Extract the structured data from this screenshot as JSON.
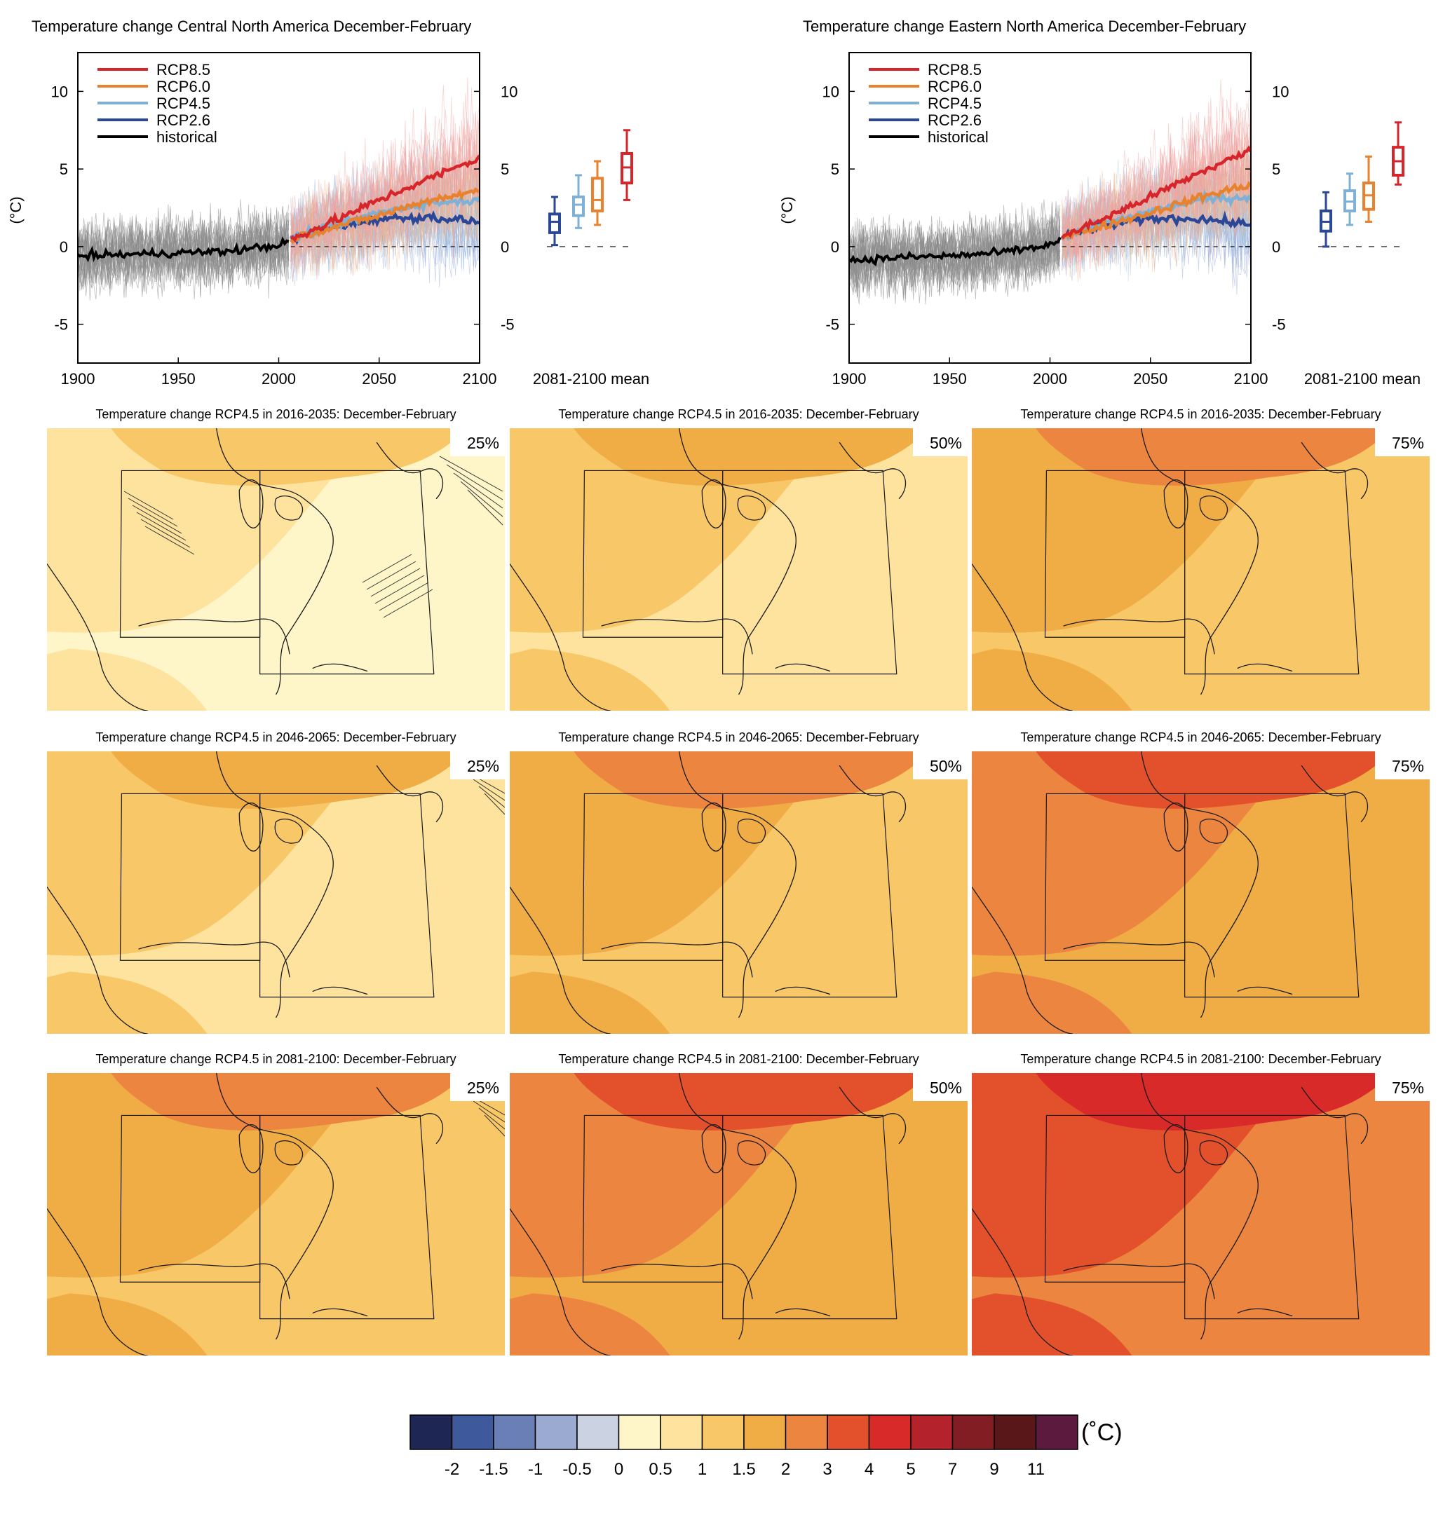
{
  "time_series": [
    {
      "title": "Temperature change Central North America December-February",
      "ylabel": "(°C)",
      "boxplot_label": "2081-2100 mean"
    },
    {
      "title": "Temperature change Eastern North America December-February",
      "ylabel": "(°C)",
      "boxplot_label": "2081-2100 mean"
    }
  ],
  "legend": [
    {
      "name": "RCP8.5",
      "color": "#d7262b"
    },
    {
      "name": "RCP6.0",
      "color": "#e8822e"
    },
    {
      "name": "RCP4.5",
      "color": "#7fb0d6"
    },
    {
      "name": "RCP2.6",
      "color": "#2b4797"
    },
    {
      "name": "historical",
      "color": "#000000"
    }
  ],
  "x_ticks": [
    "1900",
    "1950",
    "2000",
    "2050",
    "2100"
  ],
  "y_ticks": [
    "-5",
    "0",
    "5",
    "10"
  ],
  "maps": [
    {
      "title": "Temperature change RCP4.5 in 2016-2035: December-February",
      "pct": "25%",
      "level": 0
    },
    {
      "title": "Temperature change RCP4.5 in 2016-2035: December-February",
      "pct": "50%",
      "level": 1
    },
    {
      "title": "Temperature change RCP4.5 in 2016-2035: December-February",
      "pct": "75%",
      "level": 2
    },
    {
      "title": "Temperature change RCP4.5 in 2046-2065: December-February",
      "pct": "25%",
      "level": 1
    },
    {
      "title": "Temperature change RCP4.5 in 2046-2065: December-February",
      "pct": "50%",
      "level": 2
    },
    {
      "title": "Temperature change RCP4.5 in 2046-2065: December-February",
      "pct": "75%",
      "level": 3
    },
    {
      "title": "Temperature change RCP4.5 in 2081-2100: December-February",
      "pct": "25%",
      "level": 2
    },
    {
      "title": "Temperature change RCP4.5 in 2081-2100: December-February",
      "pct": "50%",
      "level": 3
    },
    {
      "title": "Temperature change RCP4.5 in 2081-2100: December-February",
      "pct": "75%",
      "level": 4
    }
  ],
  "colorbar": {
    "unit": "(˚C)",
    "colors": [
      "#1e2654",
      "#3f5a9c",
      "#6a7fb5",
      "#9aaad0",
      "#cbd3e3",
      "#fef5c8",
      "#fde39e",
      "#f8c768",
      "#f0ac45",
      "#ec8540",
      "#e3512c",
      "#d92a2a",
      "#b4232b",
      "#821d24",
      "#591719",
      "#5c1a3f"
    ],
    "labels": [
      "-2",
      "-1.5",
      "-1",
      "-0.5",
      "0",
      "0.5",
      "1",
      "1.5",
      "2",
      "3",
      "4",
      "5",
      "7",
      "9",
      "11"
    ]
  },
  "chart_data": [
    {
      "type": "line",
      "title": "Temperature change Central North America December-February",
      "ylabel": "(°C)",
      "xlim": [
        1900,
        2100
      ],
      "ylim": [
        -7.5,
        12.5
      ],
      "series": [
        {
          "name": "historical",
          "x": [
            1900,
            1925,
            1950,
            1975,
            2000,
            2005
          ],
          "y": [
            -0.6,
            -0.5,
            -0.4,
            -0.3,
            0.1,
            0.3
          ]
        },
        {
          "name": "RCP2.6",
          "x": [
            2006,
            2025,
            2050,
            2075,
            2100
          ],
          "y": [
            0.5,
            1.2,
            1.8,
            1.9,
            1.6
          ]
        },
        {
          "name": "RCP4.5",
          "x": [
            2006,
            2025,
            2050,
            2075,
            2100
          ],
          "y": [
            0.5,
            1.3,
            2.2,
            2.8,
            3.0
          ]
        },
        {
          "name": "RCP6.0",
          "x": [
            2006,
            2025,
            2050,
            2075,
            2100
          ],
          "y": [
            0.5,
            1.2,
            2.0,
            3.0,
            3.6
          ]
        },
        {
          "name": "RCP8.5",
          "x": [
            2006,
            2025,
            2050,
            2075,
            2100
          ],
          "y": [
            0.5,
            1.5,
            3.0,
            4.4,
            5.7
          ]
        }
      ],
      "boxplot_2081_2100": [
        {
          "name": "RCP2.6",
          "min": 0.1,
          "q1": 0.9,
          "median": 1.6,
          "q3": 2.1,
          "max": 3.2
        },
        {
          "name": "RCP4.5",
          "min": 1.2,
          "q1": 2.0,
          "median": 2.7,
          "q3": 3.2,
          "max": 4.6
        },
        {
          "name": "RCP6.0",
          "min": 1.4,
          "q1": 2.3,
          "median": 3.0,
          "q3": 4.4,
          "max": 5.5
        },
        {
          "name": "RCP8.5",
          "min": 3.0,
          "q1": 4.1,
          "median": 5.1,
          "q3": 6.0,
          "max": 7.5
        }
      ]
    },
    {
      "type": "line",
      "title": "Temperature change Eastern North America December-February",
      "ylabel": "(°C)",
      "xlim": [
        1900,
        2100
      ],
      "ylim": [
        -7.5,
        12.5
      ],
      "series": [
        {
          "name": "historical",
          "x": [
            1900,
            1925,
            1950,
            1975,
            2000,
            2005
          ],
          "y": [
            -0.9,
            -0.7,
            -0.6,
            -0.4,
            0.1,
            0.4
          ]
        },
        {
          "name": "RCP2.6",
          "x": [
            2006,
            2025,
            2050,
            2075,
            2100
          ],
          "y": [
            0.6,
            1.3,
            1.8,
            1.8,
            1.4
          ]
        },
        {
          "name": "RCP4.5",
          "x": [
            2006,
            2025,
            2050,
            2075,
            2100
          ],
          "y": [
            0.6,
            1.4,
            2.3,
            3.0,
            3.2
          ]
        },
        {
          "name": "RCP6.0",
          "x": [
            2006,
            2025,
            2050,
            2075,
            2100
          ],
          "y": [
            0.6,
            1.3,
            2.2,
            3.2,
            4.0
          ]
        },
        {
          "name": "RCP8.5",
          "x": [
            2006,
            2025,
            2050,
            2075,
            2100
          ],
          "y": [
            0.6,
            1.7,
            3.2,
            4.8,
            6.2
          ]
        }
      ],
      "boxplot_2081_2100": [
        {
          "name": "RCP2.6",
          "min": 0.0,
          "q1": 1.0,
          "median": 1.6,
          "q3": 2.3,
          "max": 3.5
        },
        {
          "name": "RCP4.5",
          "min": 1.4,
          "q1": 2.3,
          "median": 2.9,
          "q3": 3.6,
          "max": 4.7
        },
        {
          "name": "RCP6.0",
          "min": 1.6,
          "q1": 2.4,
          "median": 3.3,
          "q3": 4.1,
          "max": 5.8
        },
        {
          "name": "RCP8.5",
          "min": 4.0,
          "q1": 4.6,
          "median": 5.5,
          "q3": 6.4,
          "max": 8.0
        }
      ]
    }
  ]
}
